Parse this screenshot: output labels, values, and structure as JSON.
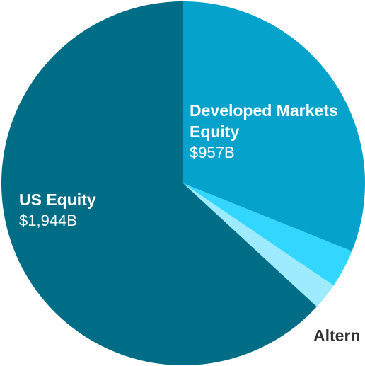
{
  "chart_data": {
    "type": "pie",
    "categories": [
      "Developed Markets Equity",
      null,
      "Altern",
      "US Equity"
    ],
    "values": [
      957,
      105,
      73,
      1944
    ],
    "value_labels": [
      "$957B",
      null,
      null,
      "$1,944B"
    ],
    "colors": [
      "#05a3cb",
      "#33d6ff",
      "#9eeaff",
      "#006d87"
    ]
  }
}
